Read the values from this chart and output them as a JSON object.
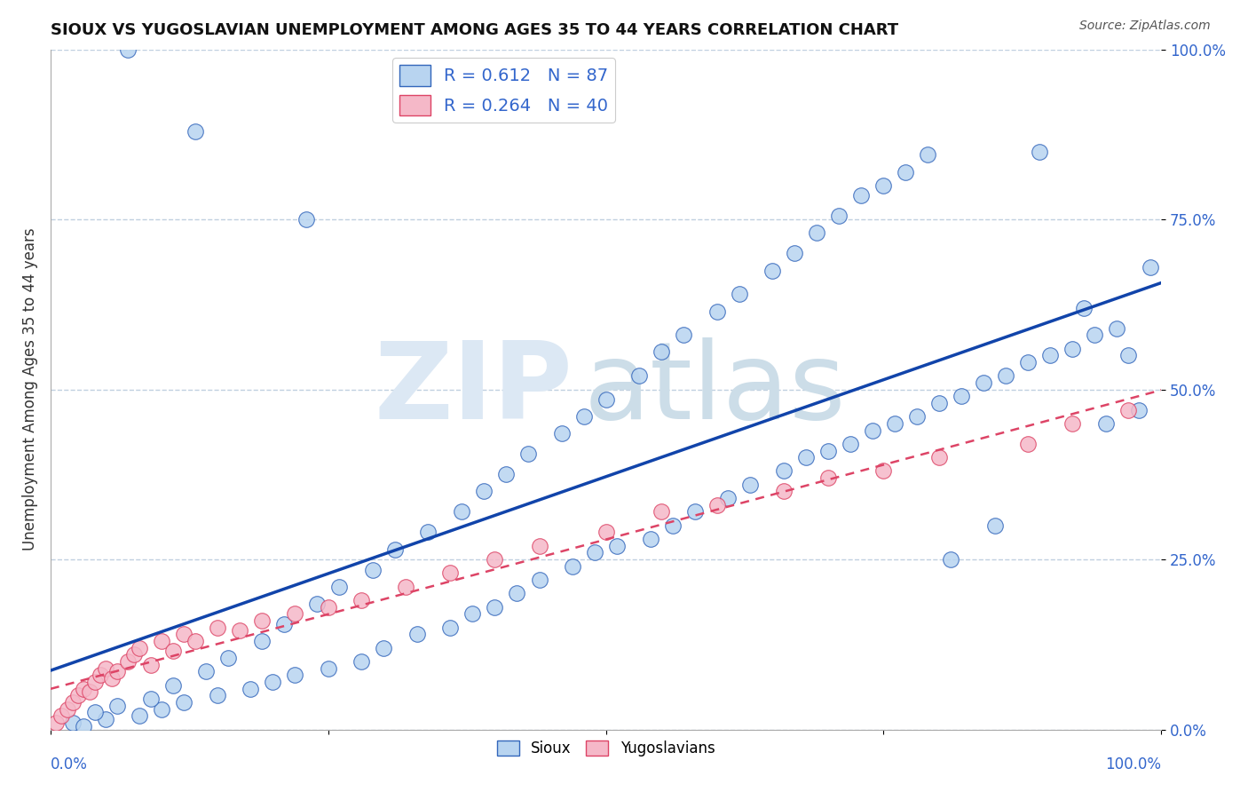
{
  "title": "SIOUX VS YUGOSLAVIAN UNEMPLOYMENT AMONG AGES 35 TO 44 YEARS CORRELATION CHART",
  "source": "Source: ZipAtlas.com",
  "ylabel": "Unemployment Among Ages 35 to 44 years",
  "legend_bottom": [
    "Sioux",
    "Yugoslavians"
  ],
  "sioux_R": "0.612",
  "sioux_N": "87",
  "yugo_R": "0.264",
  "yugo_N": "40",
  "sioux_face_color": "#b8d4f0",
  "sioux_edge_color": "#3366bb",
  "yugo_face_color": "#f5b8c8",
  "yugo_edge_color": "#dd4466",
  "sioux_line_color": "#1144aa",
  "yugo_line_color": "#dd4466",
  "background_color": "#ffffff",
  "grid_color": "#c0d0e0",
  "tick_color": "#3366cc",
  "title_color": "#111111",
  "source_color": "#555555",
  "watermark_zip_color": "#dce8f4",
  "watermark_atlas_color": "#ccdde8",
  "sioux_x": [
    2.0,
    3.0,
    5.0,
    8.0,
    10.0,
    12.0,
    15.0,
    18.0,
    20.0,
    22.0,
    25.0,
    28.0,
    30.0,
    33.0,
    36.0,
    38.0,
    40.0,
    42.0,
    44.0,
    47.0,
    49.0,
    51.0,
    54.0,
    56.0,
    58.0,
    61.0,
    63.0,
    66.0,
    68.0,
    70.0,
    72.0,
    74.0,
    76.0,
    78.0,
    80.0,
    82.0,
    84.0,
    86.0,
    88.0,
    90.0,
    92.0,
    94.0,
    96.0,
    98.0,
    4.0,
    6.0,
    9.0,
    11.0,
    14.0,
    16.0,
    19.0,
    21.0,
    24.0,
    26.0,
    29.0,
    31.0,
    34.0,
    37.0,
    39.0,
    41.0,
    43.0,
    46.0,
    48.0,
    50.0,
    53.0,
    55.0,
    57.0,
    60.0,
    62.0,
    65.0,
    67.0,
    69.0,
    71.0,
    73.0,
    75.0,
    77.0,
    79.0,
    81.0,
    85.0,
    89.0,
    93.0,
    95.0,
    97.0,
    99.0,
    7.0,
    13.0,
    23.0
  ],
  "sioux_y": [
    1.0,
    0.5,
    1.5,
    2.0,
    3.0,
    4.0,
    5.0,
    6.0,
    7.0,
    8.0,
    9.0,
    10.0,
    12.0,
    14.0,
    15.0,
    17.0,
    18.0,
    20.0,
    22.0,
    24.0,
    26.0,
    27.0,
    28.0,
    30.0,
    32.0,
    34.0,
    36.0,
    38.0,
    40.0,
    41.0,
    42.0,
    44.0,
    45.0,
    46.0,
    48.0,
    49.0,
    51.0,
    52.0,
    54.0,
    55.0,
    56.0,
    58.0,
    59.0,
    47.0,
    2.5,
    3.5,
    4.5,
    6.5,
    8.5,
    10.5,
    13.0,
    15.5,
    18.5,
    21.0,
    23.5,
    26.5,
    29.0,
    32.0,
    35.0,
    37.5,
    40.5,
    43.5,
    46.0,
    48.5,
    52.0,
    55.5,
    58.0,
    61.5,
    64.0,
    67.5,
    70.0,
    73.0,
    75.5,
    78.5,
    80.0,
    82.0,
    84.5,
    25.0,
    30.0,
    85.0,
    62.0,
    45.0,
    55.0,
    68.0,
    100.0,
    88.0,
    75.0
  ],
  "yugo_x": [
    0.5,
    1.0,
    1.5,
    2.0,
    2.5,
    3.0,
    3.5,
    4.0,
    4.5,
    5.0,
    5.5,
    6.0,
    7.0,
    7.5,
    8.0,
    9.0,
    10.0,
    11.0,
    12.0,
    13.0,
    15.0,
    17.0,
    19.0,
    22.0,
    25.0,
    28.0,
    32.0,
    36.0,
    40.0,
    44.0,
    50.0,
    55.0,
    60.0,
    66.0,
    70.0,
    75.0,
    80.0,
    88.0,
    92.0,
    97.0
  ],
  "yugo_y": [
    1.0,
    2.0,
    3.0,
    4.0,
    5.0,
    6.0,
    5.5,
    7.0,
    8.0,
    9.0,
    7.5,
    8.5,
    10.0,
    11.0,
    12.0,
    9.5,
    13.0,
    11.5,
    14.0,
    13.0,
    15.0,
    14.5,
    16.0,
    17.0,
    18.0,
    19.0,
    21.0,
    23.0,
    25.0,
    27.0,
    29.0,
    32.0,
    33.0,
    35.0,
    37.0,
    38.0,
    40.0,
    42.0,
    45.0,
    47.0
  ]
}
